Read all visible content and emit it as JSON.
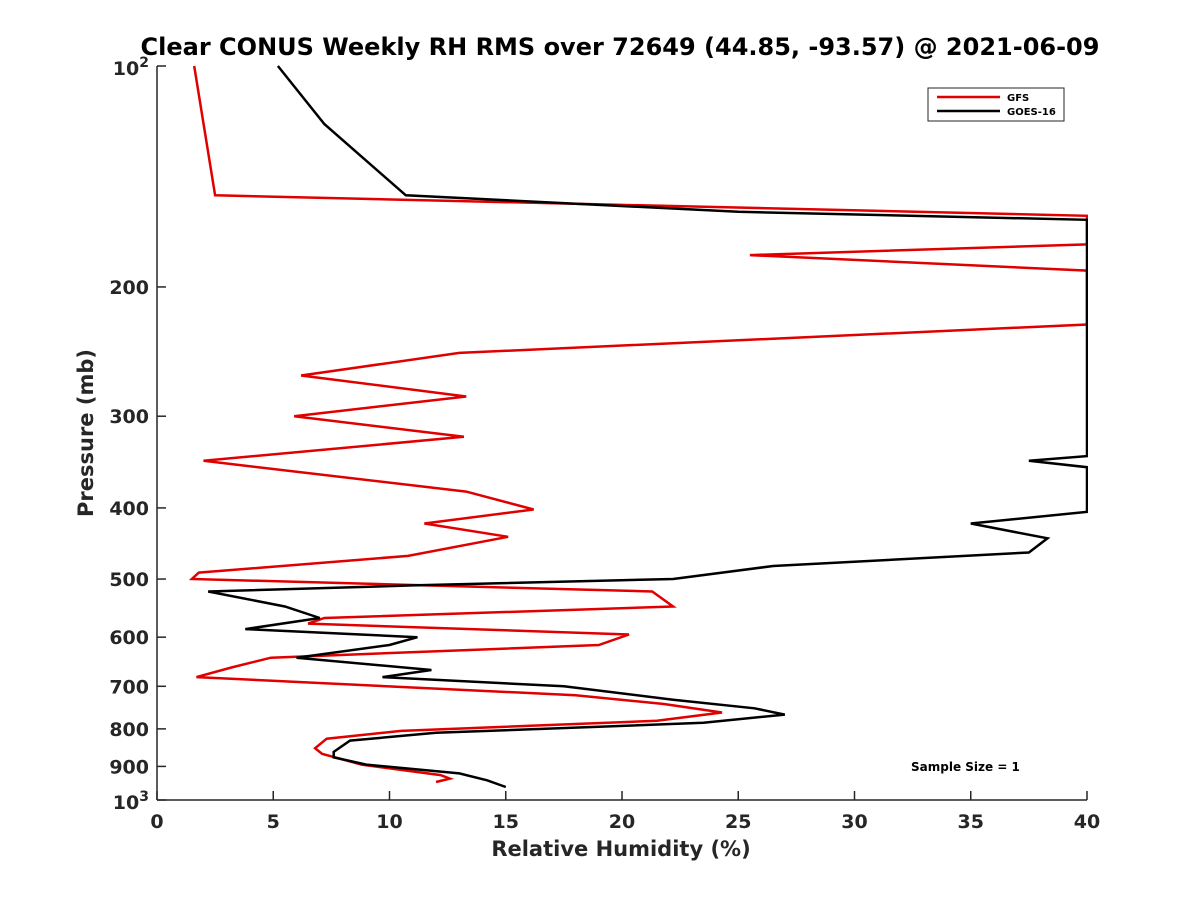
{
  "chart_data": {
    "type": "line",
    "title": "Clear CONUS Weekly RH RMS over 72649 (44.85, -93.57) @ 2021-06-09",
    "xlabel": "Relative Humidity (%)",
    "ylabel": "Pressure (mb)",
    "xlim": [
      0,
      40
    ],
    "ylim": [
      100,
      1000
    ],
    "y_scale": "log",
    "y_reversed": true,
    "x_ticks": [
      0,
      5,
      10,
      15,
      20,
      25,
      30,
      35,
      40
    ],
    "x_tick_labels": [
      "0",
      "5",
      "10",
      "15",
      "20",
      "25",
      "30",
      "35",
      "40"
    ],
    "y_ticks": [
      200,
      300,
      400,
      500,
      600,
      700,
      800,
      900
    ],
    "y_tick_labels": [
      "200",
      "300",
      "400",
      "500",
      "600",
      "700",
      "800",
      "900"
    ],
    "y_end_ticks": [
      {
        "value": 100,
        "base": "10",
        "exp": "2"
      },
      {
        "value": 1000,
        "base": "10",
        "exp": "3"
      }
    ],
    "grid": false,
    "legend_position": "top-right",
    "annotation": "Sample Size = 1",
    "series": [
      {
        "name": "GFS",
        "color": "#e00000",
        "points": [
          [
            1.6,
            100
          ],
          [
            2.5,
            150
          ],
          [
            40,
            160
          ],
          [
            40,
            175
          ],
          [
            25.5,
            181
          ],
          [
            40,
            190
          ],
          [
            40,
            225
          ],
          [
            13.0,
            246
          ],
          [
            6.2,
            264
          ],
          [
            13.3,
            282
          ],
          [
            5.9,
            300
          ],
          [
            13.2,
            320
          ],
          [
            2.0,
            345
          ],
          [
            13.3,
            380
          ],
          [
            16.2,
            402
          ],
          [
            11.5,
            420
          ],
          [
            15.1,
            438
          ],
          [
            10.8,
            465
          ],
          [
            1.8,
            490
          ],
          [
            1.5,
            500
          ],
          [
            21.3,
            520
          ],
          [
            22.2,
            545
          ],
          [
            7.2,
            565
          ],
          [
            6.5,
            575
          ],
          [
            20.3,
            595
          ],
          [
            19.0,
            615
          ],
          [
            4.9,
            640
          ],
          [
            3.2,
            660
          ],
          [
            1.7,
            680
          ],
          [
            18.0,
            720
          ],
          [
            21.8,
            740
          ],
          [
            24.3,
            760
          ],
          [
            21.5,
            780
          ],
          [
            10.5,
            805
          ],
          [
            7.3,
            825
          ],
          [
            6.8,
            850
          ],
          [
            7.1,
            865
          ],
          [
            8.8,
            895
          ],
          [
            12.2,
            925
          ],
          [
            12.6,
            935
          ],
          [
            12.0,
            945
          ]
        ]
      },
      {
        "name": "GOES-16",
        "color": "#000000",
        "points": [
          [
            5.2,
            100
          ],
          [
            7.2,
            120
          ],
          [
            10.7,
            150
          ],
          [
            25.0,
            158
          ],
          [
            40,
            162
          ],
          [
            40,
            340
          ],
          [
            37.5,
            345
          ],
          [
            40,
            352
          ],
          [
            40,
            405
          ],
          [
            35.0,
            420
          ],
          [
            38.3,
            440
          ],
          [
            37.5,
            460
          ],
          [
            26.5,
            480
          ],
          [
            22.2,
            500
          ],
          [
            11.0,
            510
          ],
          [
            2.2,
            520
          ],
          [
            5.5,
            545
          ],
          [
            7.0,
            565
          ],
          [
            3.8,
            585
          ],
          [
            11.2,
            600
          ],
          [
            10.0,
            615
          ],
          [
            6.0,
            640
          ],
          [
            11.8,
            665
          ],
          [
            9.7,
            680
          ],
          [
            17.5,
            700
          ],
          [
            22.2,
            730
          ],
          [
            25.7,
            750
          ],
          [
            27.0,
            765
          ],
          [
            23.5,
            785
          ],
          [
            12.0,
            810
          ],
          [
            8.3,
            830
          ],
          [
            7.6,
            860
          ],
          [
            7.6,
            875
          ],
          [
            9.0,
            895
          ],
          [
            13.0,
            920
          ],
          [
            14.2,
            940
          ],
          [
            15.0,
            960
          ]
        ]
      }
    ]
  }
}
